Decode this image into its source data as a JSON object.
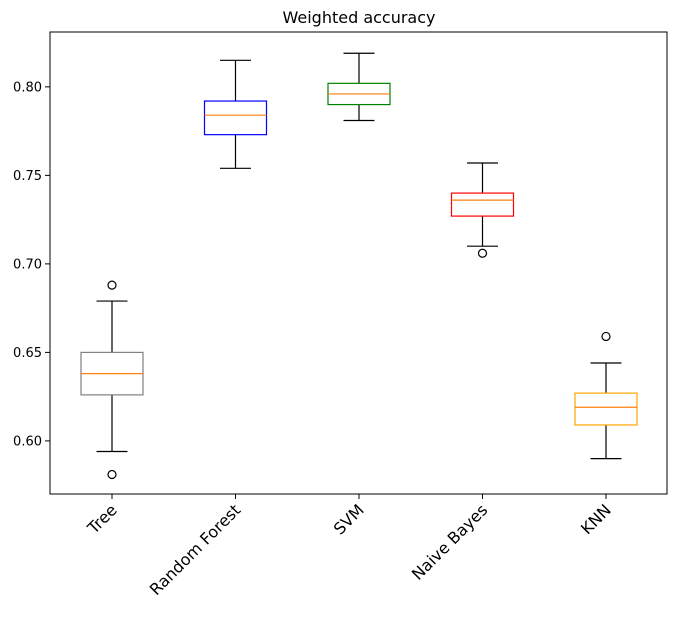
{
  "chart_data": {
    "type": "box",
    "title": "Weighted accuracy",
    "xlabel": "",
    "ylabel": "",
    "ylim": [
      0.57,
      0.831
    ],
    "yticks": [
      "0.60",
      "0.65",
      "0.70",
      "0.75",
      "0.80"
    ],
    "grid": false,
    "legend": "none",
    "categories": [
      "Tree",
      "Random Forest",
      "SVM",
      "Naive Bayes",
      "KNN"
    ],
    "boxes": [
      {
        "name": "Tree",
        "color": "#808080",
        "whisker_low": 0.594,
        "q1": 0.626,
        "median": 0.638,
        "q3": 0.65,
        "whisker_high": 0.679,
        "outliers": [
          0.581,
          0.688
        ]
      },
      {
        "name": "Random Forest",
        "color": "#0000ff",
        "whisker_low": 0.754,
        "q1": 0.773,
        "median": 0.784,
        "q3": 0.792,
        "whisker_high": 0.815,
        "outliers": []
      },
      {
        "name": "SVM",
        "color": "#008000",
        "whisker_low": 0.781,
        "q1": 0.79,
        "median": 0.796,
        "q3": 0.802,
        "whisker_high": 0.819,
        "outliers": []
      },
      {
        "name": "Naive Bayes",
        "color": "#ff0000",
        "whisker_low": 0.71,
        "q1": 0.727,
        "median": 0.736,
        "q3": 0.74,
        "whisker_high": 0.757,
        "outliers": [
          0.706
        ]
      },
      {
        "name": "KNN",
        "color": "#ffa500",
        "whisker_low": 0.59,
        "q1": 0.609,
        "median": 0.619,
        "q3": 0.627,
        "whisker_high": 0.644,
        "outliers": [
          0.659
        ]
      }
    ],
    "median_color": "#ff7f0e"
  }
}
